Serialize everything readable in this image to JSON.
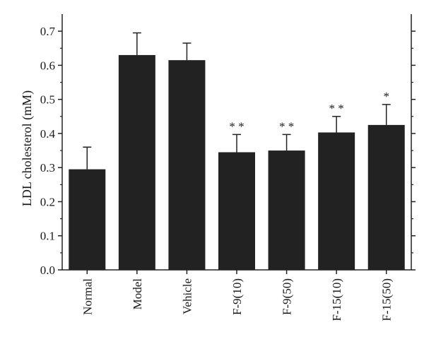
{
  "chart_data": {
    "type": "bar",
    "ylabel": "LDL cholesterol (mM)",
    "xlabel": "",
    "categories": [
      "Normal",
      "Model",
      "Vehicle",
      "F-9(10)",
      "F-9(50)",
      "F-15(10)",
      "F-15(50)"
    ],
    "values": [
      0.295,
      0.63,
      0.615,
      0.345,
      0.35,
      0.403,
      0.425
    ],
    "errors": [
      0.065,
      0.065,
      0.05,
      0.052,
      0.047,
      0.047,
      0.06
    ],
    "significance": [
      "",
      "",
      "",
      "**",
      "**",
      "**",
      "*"
    ],
    "ylim": [
      0,
      0.75
    ],
    "yticks": [
      "0.0",
      "0.1",
      "0.2",
      "0.3",
      "0.4",
      "0.5",
      "0.6",
      "0.7"
    ],
    "bar_color": "#222222",
    "grid": false,
    "legend": "none"
  }
}
